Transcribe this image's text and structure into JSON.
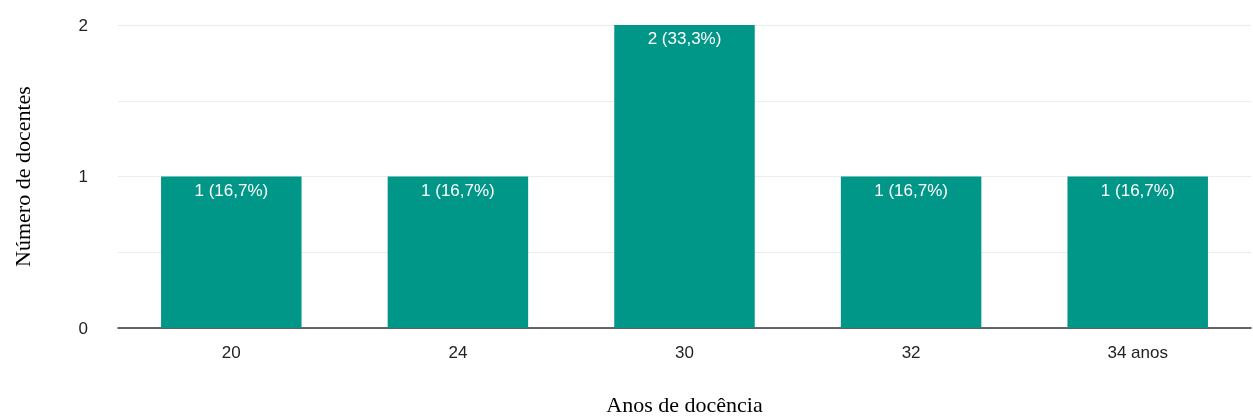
{
  "chart_data": {
    "type": "bar",
    "xlabel": "Anos de docência",
    "ylabel": "Número de docentes",
    "categories": [
      "20",
      "24",
      "30",
      "32",
      "34 anos"
    ],
    "values": [
      1,
      1,
      2,
      1,
      1
    ],
    "color": "#009688",
    "value_labels": [
      "1 (16,7%)",
      "1 (16,7%)",
      "2 (33,3%)",
      "1 (16,7%)",
      "1 (16,7%)"
    ],
    "ylim": [
      0,
      2
    ],
    "yticks": [
      0,
      {
        "value": 0.5,
        "label": null
      },
      1,
      {
        "value": 1.5,
        "label": null
      },
      2
    ],
    "grid": "y"
  }
}
